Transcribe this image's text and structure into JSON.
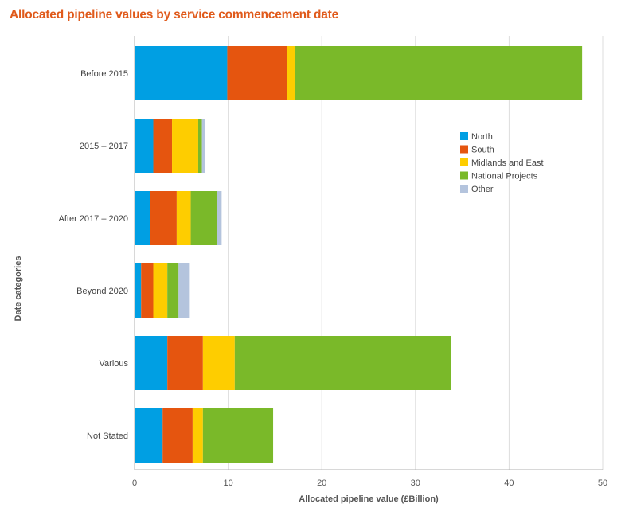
{
  "chart_data": {
    "type": "bar",
    "orientation": "horizontal",
    "stacked": true,
    "title": "Allocated pipeline values by service commencement date",
    "xlabel": "Allocated pipeline value (£Billion)",
    "ylabel": "Date categories",
    "xlim": [
      0,
      50
    ],
    "xticks": [
      "0",
      "10",
      "20",
      "30",
      "40",
      "50"
    ],
    "grid": true,
    "legend_position": "right",
    "categories": [
      "Before 2015",
      "2015 – 2017",
      "After 2017 – 2020",
      "Beyond 2020",
      "Various",
      "Not Stated"
    ],
    "series": [
      {
        "name": "North",
        "color": "#009fe3",
        "values": [
          9.9,
          2.0,
          1.7,
          0.7,
          3.5,
          3.0
        ]
      },
      {
        "name": "South",
        "color": "#e5550f",
        "values": [
          6.4,
          2.0,
          2.8,
          1.3,
          3.8,
          3.2
        ]
      },
      {
        "name": "Midlands and East",
        "color": "#fecd00",
        "values": [
          0.8,
          2.8,
          1.5,
          1.5,
          3.4,
          1.1
        ]
      },
      {
        "name": "National Projects",
        "color": "#7ab929",
        "values": [
          30.7,
          0.4,
          2.8,
          1.2,
          23.1,
          7.5
        ]
      },
      {
        "name": "Other",
        "color": "#b4c4dd",
        "values": [
          0,
          0.3,
          0.5,
          1.2,
          0,
          0
        ]
      }
    ]
  }
}
